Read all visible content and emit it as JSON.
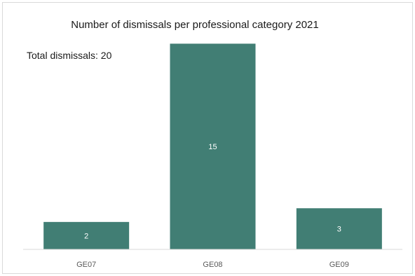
{
  "chart_data": {
    "type": "bar",
    "title": "Number of dismissals per professional category 2021",
    "annotation": "Total dismissals: 20",
    "categories": [
      "GE07",
      "GE08",
      "GE09"
    ],
    "values": [
      2,
      15,
      3
    ],
    "ylim": [
      0,
      16.5
    ],
    "xlabel": "",
    "ylabel": "",
    "grid": false,
    "legend": "none",
    "bar_color": "#417e74",
    "data_labels": true
  }
}
